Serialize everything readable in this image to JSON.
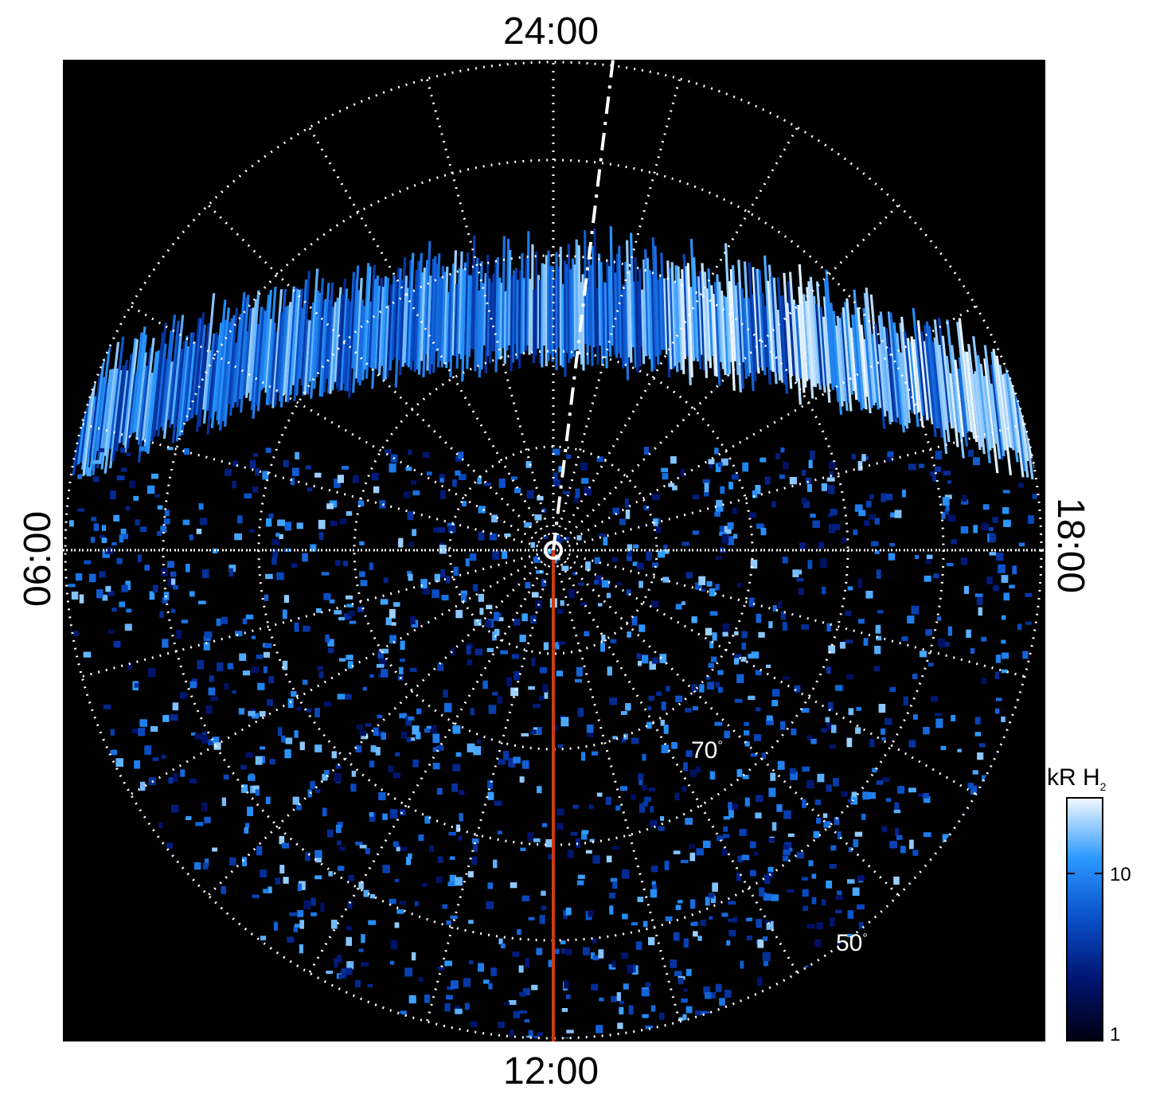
{
  "local_time_labels": {
    "top": "24:00",
    "bottom": "12:00",
    "left": "06:00",
    "right": "18:00"
  },
  "latitude_labels": [
    {
      "text": "70",
      "unit": "°"
    },
    {
      "text": "50",
      "unit": "°"
    }
  ],
  "colorbar": {
    "unit": "kR H",
    "unit_subscript": "2",
    "scale": "log",
    "ticks": [
      "10",
      "1"
    ],
    "range": [
      1,
      25
    ]
  },
  "colors": {
    "background": "#000000",
    "grid": "#ffffff",
    "meridian_line": "#cc3b12",
    "emission_low": "#000d45",
    "emission_mid": "#1e8fff",
    "emission_high": "#e8f4ff"
  }
}
